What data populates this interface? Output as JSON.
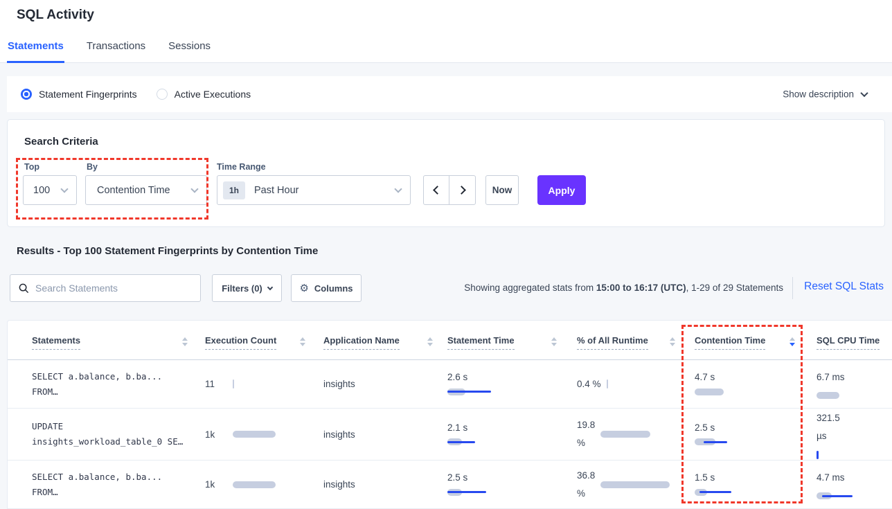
{
  "page": {
    "title": "SQL Activity"
  },
  "tabs": [
    {
      "label": "Statements",
      "active": true
    },
    {
      "label": "Transactions",
      "active": false
    },
    {
      "label": "Sessions",
      "active": false
    }
  ],
  "fingerprint_toggle": {
    "options": [
      {
        "label": "Statement Fingerprints",
        "selected": true
      },
      {
        "label": "Active Executions",
        "selected": false
      }
    ],
    "show_description_label": "Show description"
  },
  "search_criteria": {
    "title": "Search Criteria",
    "top_label": "Top",
    "top_value": "100",
    "by_label": "By",
    "by_value": "Contention Time",
    "time_range_label": "Time Range",
    "time_range_badge": "1h",
    "time_range_value": "Past Hour",
    "now_label": "Now",
    "apply_label": "Apply"
  },
  "results": {
    "heading": "Results - Top 100 Statement Fingerprints by Contention Time",
    "search_placeholder": "Search Statements",
    "filters_label": "Filters (0)",
    "columns_label": "Columns",
    "stats_text_prefix": "Showing aggregated stats from ",
    "stats_text_bold": "15:00 to 16:17 (UTC)",
    "stats_text_suffix": ", 1-29 of 29 Statements",
    "reset_label": "Reset SQL Stats"
  },
  "table": {
    "columns": [
      {
        "label": "Statements",
        "sort": "none"
      },
      {
        "label": "Execution Count",
        "sort": "none"
      },
      {
        "label": "Application Name",
        "sort": "none"
      },
      {
        "label": "Statement Time",
        "sort": "none"
      },
      {
        "label": "% of All Runtime",
        "sort": "none"
      },
      {
        "label": "Contention Time",
        "sort": "desc"
      },
      {
        "label": "SQL CPU Time",
        "sort": "none"
      }
    ],
    "rows": [
      {
        "statement": [
          "SELECT a.balance, b.ba...",
          "FROM…"
        ],
        "execution_count": {
          "value": "11",
          "bar": {
            "gray": 2
          }
        },
        "application_name": "insights",
        "statement_time": {
          "value": "2.6 s",
          "bar": {
            "gray": 26,
            "blue": [
              0,
              63
            ]
          }
        },
        "pct_all_runtime": {
          "lines": [
            "0.4 %"
          ],
          "bar": {
            "gray": 2
          }
        },
        "contention_time": {
          "value": "4.7 s",
          "bar": {
            "gray": 42
          }
        },
        "sql_cpu_time": {
          "lines": [
            "6.7 ms"
          ],
          "bar": {
            "gray": 33
          }
        }
      },
      {
        "statement": [
          "UPDATE",
          "insights_workload_table_0 SE…"
        ],
        "execution_count": {
          "value": "1k",
          "bar": {
            "gray": 62
          }
        },
        "application_name": "insights",
        "statement_time": {
          "value": "2.1 s",
          "bar": {
            "gray": 21,
            "blue": [
              0,
              40
            ]
          }
        },
        "pct_all_runtime": {
          "lines": [
            "19.8",
            "%"
          ],
          "bar": {
            "gray": 72
          }
        },
        "contention_time": {
          "value": "2.5 s",
          "bar": {
            "gray": 30,
            "blue": [
              13,
              47
            ]
          }
        },
        "sql_cpu_time": {
          "lines": [
            "321.5",
            "µs"
          ],
          "bar": {
            "blue_tick": true
          }
        }
      },
      {
        "statement": [
          "SELECT a.balance, b.ba...",
          "FROM…"
        ],
        "execution_count": {
          "value": "1k",
          "bar": {
            "gray": 62
          }
        },
        "application_name": "insights",
        "statement_time": {
          "value": "2.5 s",
          "bar": {
            "gray": 21,
            "blue": [
              0,
              56
            ]
          }
        },
        "pct_all_runtime": {
          "lines": [
            "36.8",
            "%"
          ],
          "bar": {
            "gray": 100
          }
        },
        "contention_time": {
          "value": "1.5 s",
          "bar": {
            "gray": 18,
            "blue": [
              7,
              53
            ]
          }
        },
        "sql_cpu_time": {
          "lines": [
            "4.7 ms"
          ],
          "bar": {
            "gray": 22,
            "blue": [
              8,
              52
            ]
          }
        }
      }
    ]
  },
  "annotations": {
    "highlight_1": "search-top-by-controls",
    "highlight_2": "contention-time-column",
    "highlight_color": "#f0382b"
  },
  "colors": {
    "accent_blue": "#2962ff",
    "apply_purple": "#6933ff",
    "bar_gray": "#c6cee0",
    "bar_blue": "#2749ef",
    "page_bg": "#f5f7fa"
  }
}
